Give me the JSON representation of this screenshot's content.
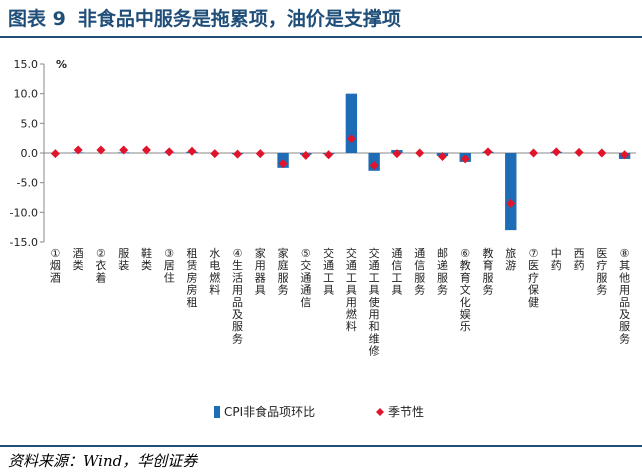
{
  "header": {
    "figure_label": "图表 9",
    "title": "非食品中服务是拖累项，油价是支撑项"
  },
  "footer": {
    "source": "资料来源：Wind，华创证券"
  },
  "colors": {
    "bar": "#1f6cb6",
    "marker": "#e0142a",
    "title": "#1f4e79",
    "rule": "#1f4e79"
  },
  "chart_data": {
    "type": "bar",
    "ylabel": "%",
    "ylim": [
      -15,
      15
    ],
    "yticks": [
      "15.0",
      "10.0",
      "5.0",
      "0.0",
      "-5.0",
      "-10.0",
      "-15.0"
    ],
    "categories": [
      "①烟酒",
      "酒类",
      "②衣着",
      "服装",
      "鞋类",
      "③居住",
      "租赁房房租",
      "水电燃料",
      "④生活用品及服务",
      "家用器具",
      "家庭服务",
      "⑤交通通信",
      "交通工具",
      "交通工具用燃料",
      "交通工具使用和维修",
      "通信工具",
      "通信服务",
      "邮递服务",
      "⑥教育文化娱乐",
      "教育服务",
      "旅游",
      "⑦医疗保健",
      "中药",
      "西药",
      "医疗服务",
      "⑧其他用品及服务"
    ],
    "series": [
      {
        "name": "CPI非食品项环比",
        "kind": "bar",
        "values": [
          0.0,
          0.1,
          0.0,
          0.1,
          0.0,
          0.1,
          0.2,
          0.0,
          -0.2,
          0.0,
          -2.5,
          -0.3,
          -0.2,
          10.0,
          -3.0,
          0.5,
          0.0,
          -0.5,
          -1.5,
          0.2,
          -13.0,
          0.0,
          0.2,
          0.0,
          0.0,
          -1.0
        ]
      },
      {
        "name": "季节性",
        "kind": "marker",
        "values": [
          -0.1,
          0.5,
          0.5,
          0.5,
          0.5,
          0.2,
          0.3,
          -0.1,
          -0.2,
          -0.1,
          -1.8,
          -0.4,
          -0.3,
          2.4,
          -2.1,
          -0.1,
          0.0,
          -0.6,
          -1.0,
          0.2,
          -8.5,
          0.0,
          0.2,
          0.1,
          0.0,
          -0.3
        ]
      }
    ],
    "legend": [
      {
        "label": "CPI非食品项环比"
      },
      {
        "label": "季节性"
      }
    ],
    "legend_position": "bottom"
  }
}
